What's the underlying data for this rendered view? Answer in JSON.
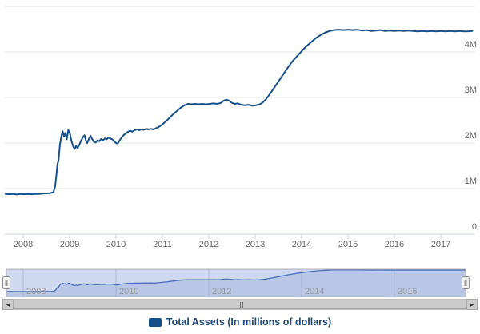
{
  "chart_data": {
    "type": "line",
    "title": "",
    "xlabel": "",
    "ylabel": "",
    "xlim": [
      2007.6,
      2017.7
    ],
    "ylim": [
      0,
      5000000
    ],
    "y_unit_suffix": "M",
    "grid": "horizontal",
    "legend_position": "bottom-center",
    "x_ticks": [
      2008,
      2009,
      2010,
      2011,
      2012,
      2013,
      2014,
      2015,
      2016,
      2017
    ],
    "y_ticks": [
      {
        "value": 0,
        "label": "0"
      },
      {
        "value": 1,
        "label": "1M"
      },
      {
        "value": 2,
        "label": "2M"
      },
      {
        "value": 3,
        "label": "3M"
      },
      {
        "value": 4,
        "label": "4M"
      },
      {
        "value": 5,
        "label": ""
      }
    ],
    "series": [
      {
        "name": "Total Assets (In millions of dollars)",
        "units": "millions of dollars",
        "points": [
          [
            2007.62,
            0.88
          ],
          [
            2007.7,
            0.875
          ],
          [
            2007.78,
            0.88
          ],
          [
            2007.86,
            0.87
          ],
          [
            2007.94,
            0.88
          ],
          [
            2008.02,
            0.875
          ],
          [
            2008.1,
            0.88
          ],
          [
            2008.18,
            0.875
          ],
          [
            2008.26,
            0.885
          ],
          [
            2008.34,
            0.88
          ],
          [
            2008.42,
            0.89
          ],
          [
            2008.5,
            0.895
          ],
          [
            2008.58,
            0.9
          ],
          [
            2008.65,
            0.92
          ],
          [
            2008.69,
            1.05
          ],
          [
            2008.72,
            1.35
          ],
          [
            2008.74,
            1.55
          ],
          [
            2008.76,
            1.6
          ],
          [
            2008.79,
            1.95
          ],
          [
            2008.82,
            2.14
          ],
          [
            2008.85,
            2.26
          ],
          [
            2008.88,
            2.14
          ],
          [
            2008.91,
            2.22
          ],
          [
            2008.94,
            2.08
          ],
          [
            2008.97,
            2.28
          ],
          [
            2009.0,
            2.24
          ],
          [
            2009.04,
            2.05
          ],
          [
            2009.08,
            1.92
          ],
          [
            2009.11,
            1.87
          ],
          [
            2009.14,
            1.94
          ],
          [
            2009.17,
            1.89
          ],
          [
            2009.21,
            1.96
          ],
          [
            2009.25,
            2.06
          ],
          [
            2009.29,
            2.13
          ],
          [
            2009.32,
            2.17
          ],
          [
            2009.35,
            2.06
          ],
          [
            2009.38,
            2.0
          ],
          [
            2009.42,
            2.1
          ],
          [
            2009.45,
            2.16
          ],
          [
            2009.48,
            2.1
          ],
          [
            2009.52,
            2.03
          ],
          [
            2009.56,
            2.01
          ],
          [
            2009.6,
            2.06
          ],
          [
            2009.64,
            2.04
          ],
          [
            2009.68,
            2.09
          ],
          [
            2009.72,
            2.06
          ],
          [
            2009.76,
            2.1
          ],
          [
            2009.8,
            2.08
          ],
          [
            2009.84,
            2.12
          ],
          [
            2009.88,
            2.1
          ],
          [
            2009.92,
            2.08
          ],
          [
            2009.96,
            2.04
          ],
          [
            2010.0,
            2.0
          ],
          [
            2010.04,
            1.99
          ],
          [
            2010.08,
            2.06
          ],
          [
            2010.12,
            2.12
          ],
          [
            2010.16,
            2.17
          ],
          [
            2010.2,
            2.2
          ],
          [
            2010.25,
            2.24
          ],
          [
            2010.3,
            2.27
          ],
          [
            2010.35,
            2.25
          ],
          [
            2010.4,
            2.28
          ],
          [
            2010.45,
            2.3
          ],
          [
            2010.5,
            2.28
          ],
          [
            2010.55,
            2.3
          ],
          [
            2010.6,
            2.29
          ],
          [
            2010.65,
            2.31
          ],
          [
            2010.7,
            2.3
          ],
          [
            2010.75,
            2.31
          ],
          [
            2010.8,
            2.3
          ],
          [
            2010.85,
            2.32
          ],
          [
            2010.9,
            2.34
          ],
          [
            2010.95,
            2.37
          ],
          [
            2011.0,
            2.41
          ],
          [
            2011.08,
            2.48
          ],
          [
            2011.16,
            2.56
          ],
          [
            2011.24,
            2.64
          ],
          [
            2011.32,
            2.71
          ],
          [
            2011.4,
            2.78
          ],
          [
            2011.48,
            2.83
          ],
          [
            2011.55,
            2.86
          ],
          [
            2011.62,
            2.85
          ],
          [
            2011.7,
            2.86
          ],
          [
            2011.78,
            2.85
          ],
          [
            2011.86,
            2.86
          ],
          [
            2011.94,
            2.85
          ],
          [
            2012.02,
            2.86
          ],
          [
            2012.1,
            2.87
          ],
          [
            2012.18,
            2.86
          ],
          [
            2012.26,
            2.88
          ],
          [
            2012.32,
            2.93
          ],
          [
            2012.38,
            2.95
          ],
          [
            2012.44,
            2.93
          ],
          [
            2012.5,
            2.88
          ],
          [
            2012.56,
            2.86
          ],
          [
            2012.62,
            2.87
          ],
          [
            2012.7,
            2.84
          ],
          [
            2012.78,
            2.83
          ],
          [
            2012.86,
            2.84
          ],
          [
            2012.94,
            2.82
          ],
          [
            2013.02,
            2.83
          ],
          [
            2013.1,
            2.85
          ],
          [
            2013.16,
            2.89
          ],
          [
            2013.24,
            2.97
          ],
          [
            2013.32,
            3.08
          ],
          [
            2013.4,
            3.2
          ],
          [
            2013.48,
            3.32
          ],
          [
            2013.56,
            3.44
          ],
          [
            2013.64,
            3.56
          ],
          [
            2013.72,
            3.68
          ],
          [
            2013.8,
            3.79
          ],
          [
            2013.88,
            3.88
          ],
          [
            2013.96,
            3.97
          ],
          [
            2014.04,
            4.06
          ],
          [
            2014.12,
            4.14
          ],
          [
            2014.2,
            4.21
          ],
          [
            2014.28,
            4.28
          ],
          [
            2014.36,
            4.34
          ],
          [
            2014.44,
            4.39
          ],
          [
            2014.52,
            4.43
          ],
          [
            2014.6,
            4.46
          ],
          [
            2014.7,
            4.48
          ],
          [
            2014.8,
            4.49
          ],
          [
            2014.9,
            4.48
          ],
          [
            2015.0,
            4.49
          ],
          [
            2015.1,
            4.48
          ],
          [
            2015.2,
            4.49
          ],
          [
            2015.3,
            4.47
          ],
          [
            2015.4,
            4.48
          ],
          [
            2015.5,
            4.46
          ],
          [
            2015.6,
            4.47
          ],
          [
            2015.7,
            4.48
          ],
          [
            2015.8,
            4.46
          ],
          [
            2015.9,
            4.47
          ],
          [
            2016.0,
            4.46
          ],
          [
            2016.1,
            4.47
          ],
          [
            2016.2,
            4.46
          ],
          [
            2016.3,
            4.47
          ],
          [
            2016.4,
            4.46
          ],
          [
            2016.5,
            4.45
          ],
          [
            2016.6,
            4.46
          ],
          [
            2016.7,
            4.45
          ],
          [
            2016.8,
            4.46
          ],
          [
            2016.9,
            4.45
          ],
          [
            2017.0,
            4.46
          ],
          [
            2017.1,
            4.45
          ],
          [
            2017.2,
            4.46
          ],
          [
            2017.3,
            4.45
          ],
          [
            2017.4,
            4.46
          ],
          [
            2017.5,
            4.45
          ],
          [
            2017.6,
            4.455
          ],
          [
            2017.68,
            4.46
          ]
        ]
      }
    ],
    "navigator": {
      "x_ticks": [
        2008,
        2010,
        2012,
        2014,
        2016
      ],
      "x_tick_labels": [
        "2008",
        "2010",
        "2012",
        "2014",
        "2016"
      ],
      "range_selected": "full"
    }
  },
  "legend": {
    "label": "Total Assets (In millions of dollars)"
  },
  "icons": {
    "scroll_left": "◂",
    "scroll_right": "▸"
  },
  "colors": {
    "series": "#16508C",
    "legend_text": "#1A4A7C",
    "grid": "#E6E6E6",
    "axis": "#C9D4E3",
    "label": "#666666",
    "nav_line": "#4A70BA",
    "nav_fill": "#AFC3E4",
    "nav_mask": "#7D98D1",
    "nav_label": "#95979E",
    "nav_outline": "#B2B1B6",
    "handle_fill": "#F3F3F3",
    "handle_border": "#8F8F8F"
  }
}
